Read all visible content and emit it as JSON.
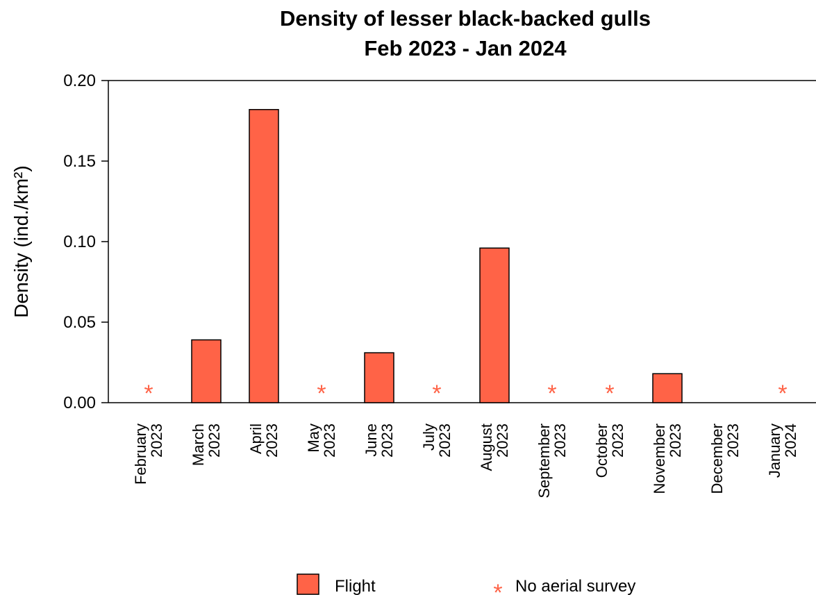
{
  "chart_data": {
    "type": "bar",
    "title": "Density of lesser black-backed gulls",
    "subtitle": "Feb 2023 - Jan 2024",
    "ylabel": "Density (ind./km²)",
    "xlabel": "",
    "ylim": [
      0,
      0.2
    ],
    "yticks": [
      "0.00",
      "0.05",
      "0.10",
      "0.15",
      "0.20"
    ],
    "ytick_values": [
      0,
      0.05,
      0.1,
      0.15,
      0.2
    ],
    "categories": [
      {
        "month": "February",
        "year": "2023"
      },
      {
        "month": "March",
        "year": "2023"
      },
      {
        "month": "April",
        "year": "2023"
      },
      {
        "month": "May",
        "year": "2023"
      },
      {
        "month": "June",
        "year": "2023"
      },
      {
        "month": "July",
        "year": "2023"
      },
      {
        "month": "August",
        "year": "2023"
      },
      {
        "month": "September",
        "year": "2023"
      },
      {
        "month": "October",
        "year": "2023"
      },
      {
        "month": "November",
        "year": "2023"
      },
      {
        "month": "December",
        "year": "2023"
      },
      {
        "month": "January",
        "year": "2024"
      }
    ],
    "series": [
      {
        "name": "Flight",
        "color": "#FF6347",
        "values": [
          null,
          0.039,
          0.182,
          null,
          0.031,
          null,
          0.096,
          null,
          null,
          0.018,
          0,
          null
        ]
      }
    ],
    "no_survey": [
      true,
      false,
      false,
      true,
      false,
      true,
      false,
      true,
      true,
      false,
      false,
      true
    ],
    "no_survey_marker": "*",
    "no_survey_color": "#FF6347",
    "legend": {
      "placement": "bottom",
      "entries": [
        {
          "label": "Flight",
          "kind": "bar-swatch"
        },
        {
          "label": "No aerial survey",
          "kind": "star",
          "symbol": "*"
        }
      ]
    },
    "grid": false
  }
}
